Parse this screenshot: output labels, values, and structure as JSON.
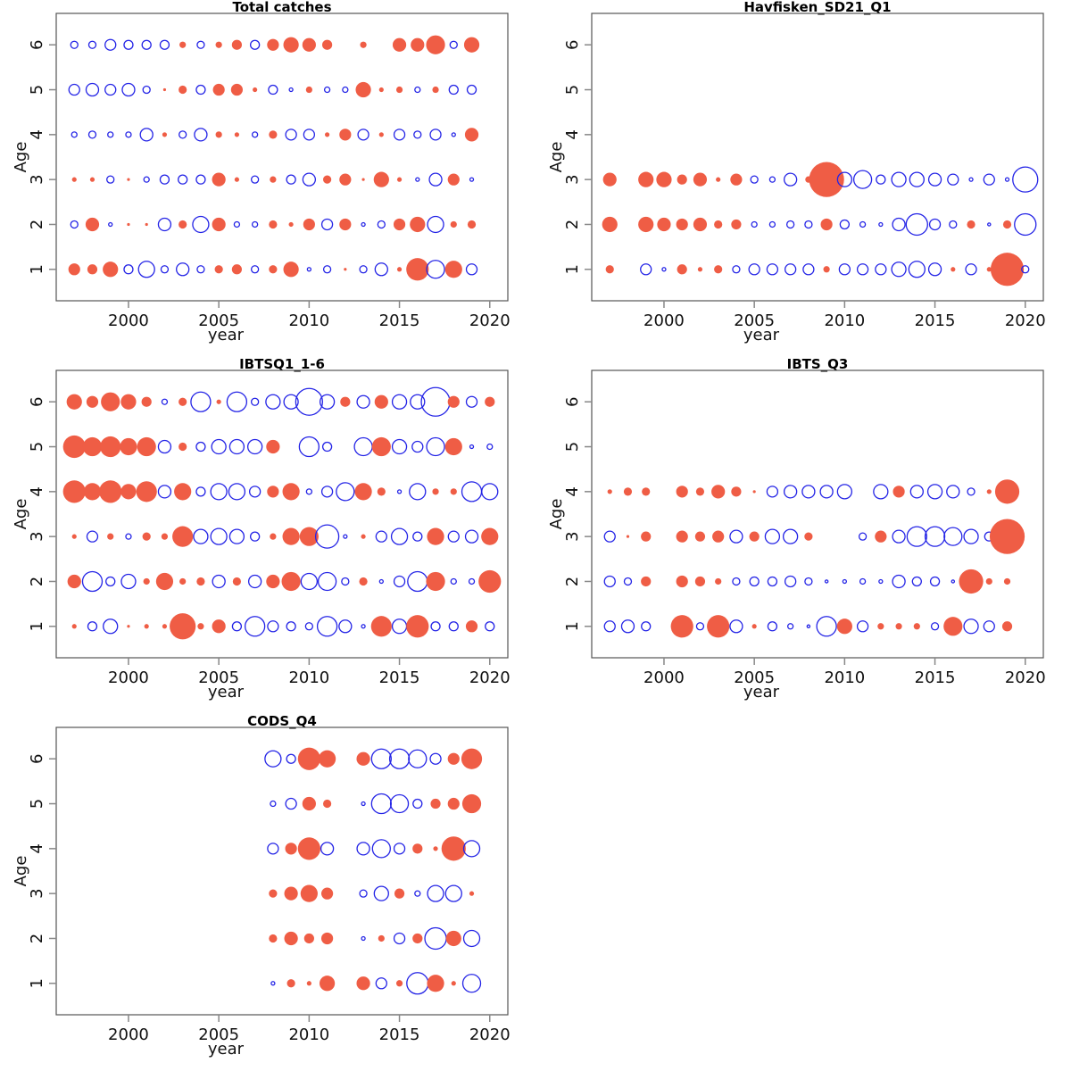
{
  "colors": {
    "positive": "#EF5D45",
    "negative": "#2424E6",
    "frame": "#555555"
  },
  "chart_data": [
    {
      "type": "scatter",
      "subtype": "bubble-residuals",
      "title": "Total catches",
      "xlabel": "year",
      "ylabel": "Age",
      "xlim": [
        1996,
        2021
      ],
      "ylim": [
        0.3,
        6.7
      ],
      "xticks": [
        2000,
        2005,
        2010,
        2015,
        2020
      ],
      "yticks": [
        1,
        2,
        3,
        4,
        5,
        6
      ],
      "legend": "none",
      "grid": false,
      "note": "values are relative residual magnitudes; positive = filled red, negative = open blue, null = no observation",
      "years": [
        1997,
        1998,
        1999,
        2000,
        2001,
        2002,
        2003,
        2004,
        2005,
        2006,
        2007,
        2008,
        2009,
        2010,
        2011,
        2012,
        2013,
        2014,
        2015,
        2016,
        2017,
        2018,
        2019
      ],
      "ages": {
        "6": [
          -4,
          -4,
          -6,
          -5,
          -5,
          -5,
          3,
          -4,
          3,
          5,
          -5,
          6,
          8,
          7,
          5,
          null,
          3,
          null,
          7,
          7,
          10,
          -4,
          8
        ],
        "5": [
          -6,
          -7,
          -6,
          -7,
          -4,
          1,
          4,
          -5,
          6,
          6,
          2,
          -5,
          -2,
          3,
          -3,
          -3,
          8,
          2,
          3,
          -3,
          3,
          -5,
          -5
        ],
        "4": [
          -3,
          -4,
          -3,
          -3,
          -7,
          2,
          -4,
          -7,
          3,
          2,
          -3,
          4,
          -6,
          -6,
          2,
          6,
          -6,
          2,
          -6,
          -4,
          -6,
          -2,
          7
        ],
        "3": [
          2,
          2,
          -4,
          1,
          -3,
          -5,
          -5,
          -5,
          7,
          2,
          -4,
          3,
          -5,
          -7,
          4,
          6,
          1,
          8,
          2,
          -2,
          -7,
          6,
          -2
        ],
        "2": [
          -4,
          7,
          -2,
          1,
          1,
          -7,
          4,
          -9,
          7,
          -3,
          -3,
          4,
          2,
          6,
          -6,
          6,
          -2,
          -4,
          6,
          8,
          -9,
          3,
          4
        ],
        "1": [
          6,
          5,
          8,
          -5,
          -9,
          -4,
          -7,
          -4,
          4,
          5,
          -4,
          4,
          8,
          -2,
          -4,
          1,
          -4,
          -7,
          2,
          12,
          -10,
          9,
          -6
        ]
      }
    },
    {
      "type": "scatter",
      "subtype": "bubble-residuals",
      "title": "Havfisken_SD21_Q1",
      "xlabel": "year",
      "ylabel": "Age",
      "xlim": [
        1996,
        2021
      ],
      "ylim": [
        0.3,
        6.7
      ],
      "xticks": [
        2000,
        2005,
        2010,
        2015,
        2020
      ],
      "yticks": [
        1,
        2,
        3,
        4,
        5,
        6
      ],
      "legend": "none",
      "grid": false,
      "years": [
        1997,
        1998,
        1999,
        2000,
        2001,
        2002,
        2003,
        2004,
        2005,
        2006,
        2007,
        2008,
        2009,
        2010,
        2011,
        2012,
        2013,
        2014,
        2015,
        2016,
        2017,
        2018,
        2019,
        2020
      ],
      "ages": {
        "6": [
          null,
          null,
          null,
          null,
          null,
          null,
          null,
          null,
          null,
          null,
          null,
          null,
          null,
          null,
          null,
          null,
          null,
          null,
          null,
          null,
          null,
          null,
          null,
          null
        ],
        "5": [
          null,
          null,
          null,
          null,
          null,
          null,
          null,
          null,
          null,
          null,
          null,
          null,
          null,
          null,
          null,
          null,
          null,
          null,
          null,
          null,
          null,
          null,
          null,
          null
        ],
        "4": [
          null,
          null,
          null,
          null,
          null,
          null,
          null,
          null,
          null,
          null,
          null,
          null,
          null,
          null,
          null,
          null,
          null,
          null,
          null,
          null,
          null,
          null,
          null,
          null
        ],
        "3": [
          7,
          null,
          8,
          8,
          5,
          7,
          2,
          6,
          -4,
          -3,
          -7,
          3,
          19,
          -8,
          -10,
          -5,
          -8,
          -8,
          -7,
          -6,
          -2,
          -6,
          -2,
          -14
        ],
        "2": [
          8,
          null,
          8,
          7,
          6,
          7,
          4,
          5,
          -3,
          -3,
          -4,
          -4,
          6,
          -5,
          -3,
          -2,
          -7,
          -12,
          -6,
          -4,
          4,
          -1,
          4,
          -12
        ],
        "1": [
          4,
          null,
          -6,
          -2,
          5,
          2,
          4,
          -4,
          -6,
          -6,
          -6,
          -6,
          3,
          -6,
          -6,
          -6,
          -8,
          -9,
          -7,
          2,
          -6,
          2,
          18,
          -4
        ]
      }
    },
    {
      "type": "scatter",
      "subtype": "bubble-residuals",
      "title": "IBTSQ1_1-6",
      "xlabel": "year",
      "ylabel": "Age",
      "xlim": [
        1996,
        2021
      ],
      "ylim": [
        0.3,
        6.7
      ],
      "xticks": [
        2000,
        2005,
        2010,
        2015,
        2020
      ],
      "yticks": [
        1,
        2,
        3,
        4,
        5,
        6
      ],
      "legend": "none",
      "grid": false,
      "years": [
        1997,
        1998,
        1999,
        2000,
        2001,
        2002,
        2003,
        2004,
        2005,
        2006,
        2007,
        2008,
        2009,
        2010,
        2011,
        2012,
        2013,
        2014,
        2015,
        2016,
        2017,
        2018,
        2019,
        2020
      ],
      "ages": {
        "6": [
          8,
          6,
          10,
          8,
          5,
          -3,
          4,
          -11,
          2,
          -11,
          -4,
          -8,
          -8,
          -15,
          -8,
          5,
          -7,
          7,
          -8,
          -8,
          -16,
          6,
          -6,
          5
        ],
        "5": [
          12,
          10,
          11,
          9,
          10,
          -7,
          4,
          -5,
          -8,
          -8,
          -8,
          7,
          null,
          -11,
          -5,
          null,
          -10,
          10,
          -8,
          -6,
          -10,
          9,
          -2,
          -3
        ],
        "4": [
          12,
          9,
          12,
          8,
          11,
          -7,
          9,
          -5,
          -9,
          -9,
          -6,
          6,
          9,
          -3,
          -6,
          -10,
          9,
          4,
          -2,
          -9,
          3,
          3,
          -11,
          -9
        ],
        "3": [
          2,
          -6,
          3,
          -3,
          4,
          3,
          11,
          -8,
          -9,
          -8,
          -5,
          3,
          9,
          10,
          -13,
          -2,
          2,
          -6,
          -9,
          -5,
          9,
          -6,
          -7,
          9
        ],
        "2": [
          7,
          -11,
          -5,
          -8,
          3,
          9,
          3,
          4,
          -7,
          4,
          -7,
          7,
          10,
          -9,
          -10,
          -4,
          4,
          -2,
          -6,
          -11,
          10,
          -3,
          -3,
          12
        ],
        "1": [
          2,
          -5,
          -8,
          1,
          2,
          2,
          14,
          3,
          7,
          -5,
          -11,
          -6,
          -5,
          -4,
          -11,
          -7,
          -2,
          11,
          -8,
          12,
          -5,
          -5,
          6,
          -5
        ]
      }
    },
    {
      "type": "scatter",
      "subtype": "bubble-residuals",
      "title": "IBTS_Q3",
      "xlabel": "year",
      "ylabel": "Age",
      "xlim": [
        1996,
        2021
      ],
      "ylim": [
        0.3,
        6.7
      ],
      "xticks": [
        2000,
        2005,
        2010,
        2015,
        2020
      ],
      "yticks": [
        1,
        2,
        3,
        4,
        5,
        6
      ],
      "legend": "none",
      "grid": false,
      "years": [
        1997,
        1998,
        1999,
        2000,
        2001,
        2002,
        2003,
        2004,
        2005,
        2006,
        2007,
        2008,
        2009,
        2010,
        2011,
        2012,
        2013,
        2014,
        2015,
        2016,
        2017,
        2018,
        2019
      ],
      "ages": {
        "6": [
          null,
          null,
          null,
          null,
          null,
          null,
          null,
          null,
          null,
          null,
          null,
          null,
          null,
          null,
          null,
          null,
          null,
          null,
          null,
          null,
          null,
          null,
          null
        ],
        "5": [
          null,
          null,
          null,
          null,
          null,
          null,
          null,
          null,
          null,
          null,
          null,
          null,
          null,
          null,
          null,
          null,
          null,
          null,
          null,
          null,
          null,
          null,
          null
        ],
        "4": [
          2,
          4,
          4,
          null,
          6,
          4,
          7,
          5,
          1,
          -6,
          -7,
          -7,
          -7,
          -8,
          null,
          -8,
          6,
          -7,
          -8,
          -7,
          -4,
          2,
          13
        ],
        "3": [
          -6,
          1,
          5,
          null,
          6,
          5,
          6,
          -7,
          5,
          -8,
          -8,
          4,
          null,
          null,
          -4,
          6,
          -7,
          -11,
          -11,
          -10,
          -8,
          -5,
          19
        ],
        "2": [
          -6,
          -4,
          5,
          null,
          6,
          5,
          3,
          -4,
          -5,
          -5,
          -6,
          -4,
          -1,
          -2,
          -3,
          -2,
          -7,
          -5,
          -5,
          -1,
          13,
          3,
          3
        ],
        "1": [
          -6,
          -7,
          -5,
          null,
          12,
          -4,
          12,
          -7,
          2,
          -5,
          -3,
          -1,
          -11,
          8,
          -6,
          3,
          3,
          3,
          -4,
          10,
          -8,
          -6,
          5
        ]
      }
    },
    {
      "type": "scatter",
      "subtype": "bubble-residuals",
      "title": "CODS_Q4",
      "xlabel": "year",
      "ylabel": "Age",
      "xlim": [
        1996,
        2021
      ],
      "ylim": [
        0.3,
        6.7
      ],
      "xticks": [
        2000,
        2005,
        2010,
        2015,
        2020
      ],
      "yticks": [
        1,
        2,
        3,
        4,
        5,
        6
      ],
      "legend": "none",
      "grid": false,
      "years": [
        2008,
        2009,
        2010,
        2011,
        2012,
        2013,
        2014,
        2015,
        2016,
        2017,
        2018,
        2019
      ],
      "ages": {
        "6": [
          -9,
          -5,
          12,
          9,
          null,
          7,
          -11,
          -11,
          -10,
          -6,
          6,
          11
        ],
        "5": [
          -3,
          -6,
          7,
          4,
          null,
          -2,
          -11,
          -10,
          -5,
          5,
          6,
          10
        ],
        "4": [
          -6,
          6,
          12,
          -7,
          null,
          -7,
          -10,
          -6,
          5,
          2,
          13,
          -9
        ],
        "3": [
          4,
          7,
          9,
          6,
          null,
          -4,
          -8,
          5,
          -3,
          -9,
          -9,
          2
        ],
        "2": [
          4,
          7,
          5,
          6,
          null,
          -2,
          3,
          -6,
          5,
          -12,
          8,
          -9
        ],
        "1": [
          -2,
          4,
          2,
          8,
          null,
          7,
          -6,
          3,
          -12,
          9,
          2,
          -10
        ]
      }
    }
  ]
}
